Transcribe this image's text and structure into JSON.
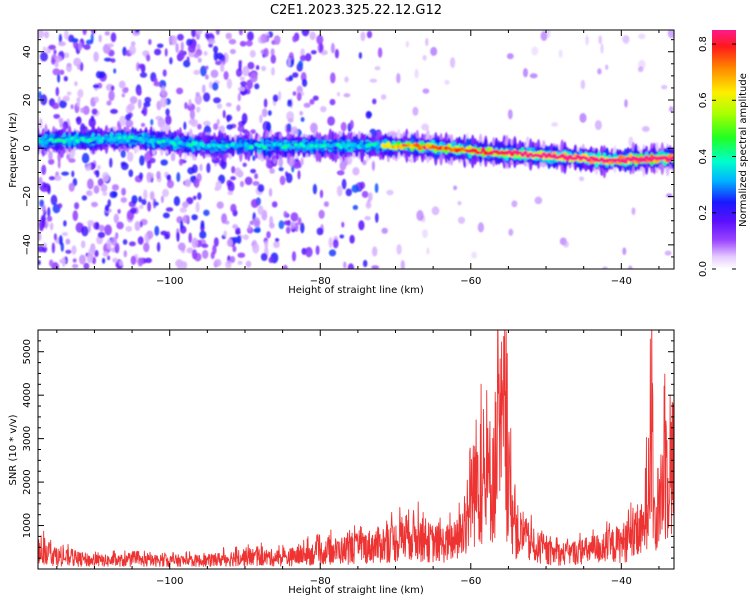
{
  "title": "C2E1.2023.325.22.12.G12",
  "chart_data": [
    {
      "type": "heatmap",
      "xlabel": "Height of straight line (km)",
      "ylabel": "Frequency (Hz)",
      "xlim": [
        -117.5,
        -33
      ],
      "ylim": [
        -50,
        49
      ],
      "xticks": [
        -100,
        -80,
        -60,
        -40
      ],
      "yticks": [
        -40,
        -20,
        0,
        20,
        40
      ],
      "colorbar": {
        "label": "Normalized spectral amplitude",
        "range": [
          0.0,
          0.85
        ],
        "ticks": [
          0.0,
          0.2,
          0.4,
          0.6,
          0.8
        ],
        "colormap": [
          "#ffffff",
          "#d8b8ff",
          "#7a1cff",
          "#1a1aff",
          "#00ccff",
          "#00ffaa",
          "#33ff00",
          "#ffff00",
          "#ff8800",
          "#ff0000",
          "#ff1a8c"
        ]
      },
      "ridge": [
        {
          "height_km": -117.5,
          "freq_hz": 3
        },
        {
          "height_km": -105,
          "freq_hz": 4
        },
        {
          "height_km": -95,
          "freq_hz": 1
        },
        {
          "height_km": -85,
          "freq_hz": 1
        },
        {
          "height_km": -75,
          "freq_hz": 1
        },
        {
          "height_km": -68,
          "freq_hz": 1
        },
        {
          "height_km": -60,
          "freq_hz": -1
        },
        {
          "height_km": -50,
          "freq_hz": -3
        },
        {
          "height_km": -42,
          "freq_hz": -5
        },
        {
          "height_km": -33,
          "freq_hz": -4
        }
      ],
      "noise_region_km": [
        -117.5,
        -72
      ]
    },
    {
      "type": "line",
      "xlabel": "Height of straight line (km)",
      "ylabel": "SNR (10 * v/v)",
      "xlim": [
        -117.5,
        -33
      ],
      "ylim": [
        0,
        5500
      ],
      "xticks": [
        -100,
        -80,
        -60,
        -40
      ],
      "yticks": [
        1000,
        2000,
        3000,
        4000,
        5000
      ],
      "color": "#ee3333",
      "series": [
        {
          "points": [
            {
              "x": -117.5,
              "y": 800
            },
            {
              "x": -115,
              "y": 450
            },
            {
              "x": -110,
              "y": 300
            },
            {
              "x": -105,
              "y": 300
            },
            {
              "x": -100,
              "y": 300
            },
            {
              "x": -95,
              "y": 300
            },
            {
              "x": -90,
              "y": 450
            },
            {
              "x": -85,
              "y": 400
            },
            {
              "x": -80,
              "y": 600
            },
            {
              "x": -75,
              "y": 750
            },
            {
              "x": -72,
              "y": 900
            },
            {
              "x": -70,
              "y": 1000
            },
            {
              "x": -68,
              "y": 1300
            },
            {
              "x": -66,
              "y": 1000
            },
            {
              "x": -64,
              "y": 900
            },
            {
              "x": -62,
              "y": 1000
            },
            {
              "x": -61,
              "y": 1400
            },
            {
              "x": -60,
              "y": 2800
            },
            {
              "x": -59,
              "y": 3400
            },
            {
              "x": -58,
              "y": 2900
            },
            {
              "x": -57,
              "y": 3600
            },
            {
              "x": -56,
              "y": 4800
            },
            {
              "x": -55.5,
              "y": 5400
            },
            {
              "x": -55,
              "y": 3000
            },
            {
              "x": -54,
              "y": 1400
            },
            {
              "x": -52,
              "y": 900
            },
            {
              "x": -50,
              "y": 600
            },
            {
              "x": -48,
              "y": 550
            },
            {
              "x": -45,
              "y": 650
            },
            {
              "x": -42,
              "y": 800
            },
            {
              "x": -40,
              "y": 950
            },
            {
              "x": -38,
              "y": 1200
            },
            {
              "x": -37,
              "y": 1450
            },
            {
              "x": -36.5,
              "y": 3500
            },
            {
              "x": -36,
              "y": 5500
            },
            {
              "x": -35.5,
              "y": 900
            },
            {
              "x": -35,
              "y": 2500
            },
            {
              "x": -34,
              "y": 3900
            },
            {
              "x": -33,
              "y": 3800
            }
          ]
        }
      ]
    }
  ]
}
